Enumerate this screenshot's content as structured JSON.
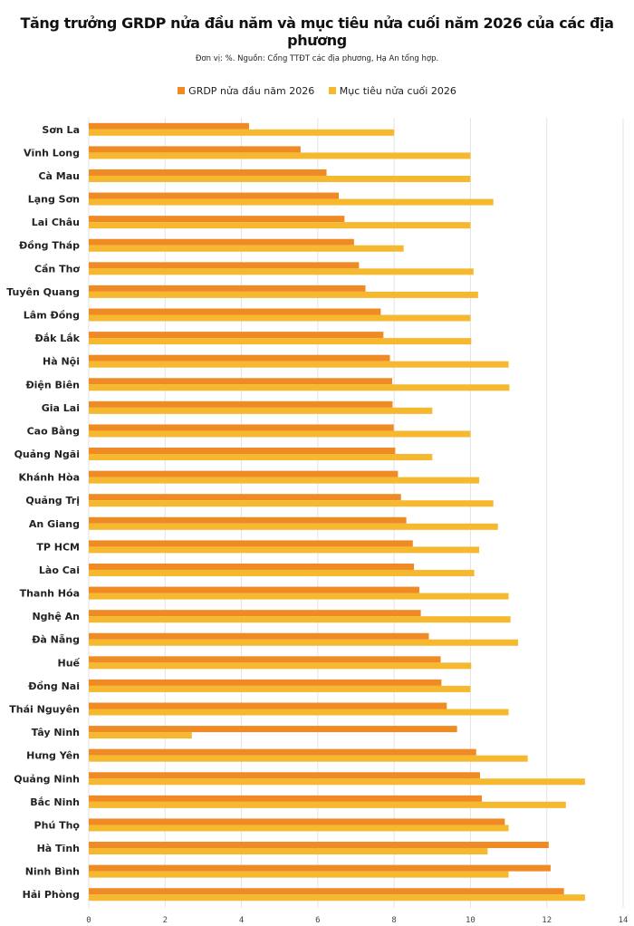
{
  "chart_data": {
    "type": "bar",
    "orientation": "horizontal",
    "title": "Tăng trưởng GRDP nửa đầu năm và mục tiêu nửa cuối năm 2026 của các địa phương",
    "subtitle": "Đơn vị: %. Nguồn: Cổng TTĐT các địa phương, Hạ An tổng hợp.",
    "categories": [
      "Sơn La",
      "Vĩnh Long",
      "Cà Mau",
      "Lạng Sơn",
      "Lai Châu",
      "Đồng Tháp",
      "Cần Thơ",
      "Tuyên Quang",
      "Lâm Đồng",
      "Đắk Lắk",
      "Hà Nội",
      "Điện Biên",
      "Gia Lai",
      "Cao Bằng",
      "Quảng Ngãi",
      "Khánh Hòa",
      "Quảng Trị",
      "An Giang",
      "TP HCM",
      "Lào Cai",
      "Thanh Hóa",
      "Nghệ An",
      "Đà Nẵng",
      "Huế",
      "Đồng Nai",
      "Thái Nguyên",
      "Tây Ninh",
      "Hưng Yên",
      "Quảng Ninh",
      "Bắc Ninh",
      "Phú Thọ",
      "Hà Tĩnh",
      "Ninh Bình",
      "Hải Phòng"
    ],
    "series": [
      {
        "name": "GRDP nửa đầu năm 2026",
        "color": "#f08a24",
        "values": [
          4.2,
          5.55,
          6.23,
          6.55,
          6.7,
          6.95,
          7.08,
          7.25,
          7.65,
          7.72,
          7.89,
          7.95,
          7.96,
          7.99,
          8.03,
          8.1,
          8.18,
          8.32,
          8.49,
          8.52,
          8.66,
          8.7,
          8.91,
          9.22,
          9.24,
          9.38,
          9.65,
          10.15,
          10.25,
          10.3,
          10.9,
          12.05,
          12.1,
          12.45
        ]
      },
      {
        "name": "Mục tiêu nửa cuối 2026",
        "color": "#f5b82e",
        "values": [
          8.0,
          10.0,
          10.0,
          10.6,
          10.0,
          8.25,
          10.08,
          10.2,
          10.0,
          10.02,
          11.0,
          11.02,
          9.0,
          10.0,
          9.0,
          10.23,
          10.6,
          10.72,
          10.23,
          10.1,
          11.0,
          11.05,
          11.25,
          10.02,
          10.0,
          11.0,
          2.7,
          11.5,
          13.0,
          12.5,
          11.0,
          10.45,
          11.0,
          13.0
        ]
      }
    ],
    "xlim": [
      0,
      14
    ],
    "xticks": [
      0,
      2,
      4,
      6,
      8,
      10,
      12,
      14
    ],
    "grid": true,
    "legend_position": "top-center"
  }
}
